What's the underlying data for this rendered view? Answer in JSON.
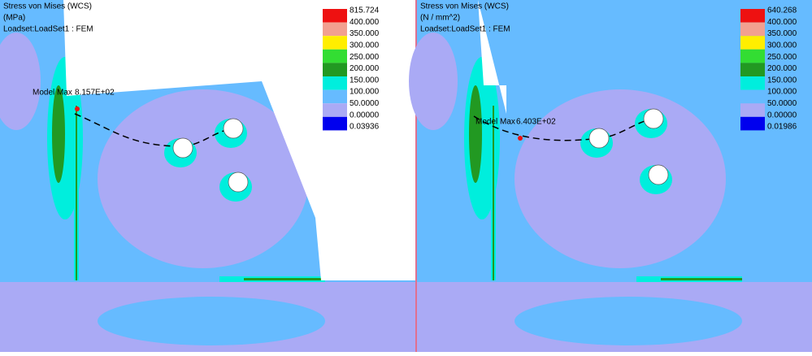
{
  "panels": [
    {
      "title": "Stress von Mises (WCS)",
      "units": "(MPa)",
      "loadset": "Loadset:LoadSet1 :  FEM",
      "max_label": "Model Max",
      "max_value": "8.157E+02",
      "legend": {
        "labels": [
          "815.724",
          "400.000",
          "350.000",
          "300.000",
          "250.000",
          "200.000",
          "150.000",
          "100.000",
          "50.0000",
          "0.00000",
          "0.03936"
        ],
        "colors": [
          "#ee1111",
          "#f2a090",
          "#ffee00",
          "#33dd33",
          "#229922",
          "#00eedd",
          "#66bbff",
          "#aaaaf5",
          "#0000ee"
        ]
      }
    },
    {
      "title": "Stress von Mises (WCS)",
      "units": "(N / mm^2)",
      "loadset": "Loadset:LoadSet1 :  FEM",
      "max_label": "Model Max",
      "max_value": "6.403E+02",
      "legend": {
        "labels": [
          "640.268",
          "400.000",
          "350.000",
          "300.000",
          "250.000",
          "200.000",
          "150.000",
          "100.000",
          "50.0000",
          "0.00000",
          "0.01986"
        ],
        "colors": [
          "#ee1111",
          "#f2a090",
          "#ffee00",
          "#33dd33",
          "#229922",
          "#00eedd",
          "#66bbff",
          "#aaaaf5",
          "#0000ee"
        ]
      }
    }
  ]
}
